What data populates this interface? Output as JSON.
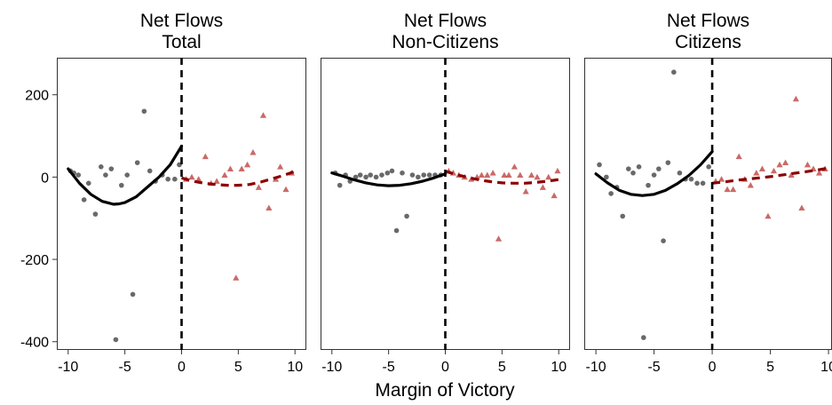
{
  "figure": {
    "xlabel": "Margin of Victory",
    "colors": {
      "left_points": "#595959",
      "right_points": "#c0504d",
      "left_curve": "#000000",
      "right_curve": "#8b0000",
      "cutoff_line": "#000000",
      "panel_border": "#333333"
    }
  },
  "chart_data": [
    {
      "type": "scatter",
      "title": "Net Flows\nTotal",
      "xlim": [
        -11,
        11
      ],
      "ylim": [
        -420,
        290
      ],
      "xticks": [
        -10,
        -5,
        0,
        5,
        10
      ],
      "yticks": [
        -400,
        -200,
        0,
        200
      ],
      "cutoff": 0,
      "left_points": [
        [
          -9.8,
          15
        ],
        [
          -9.5,
          10
        ],
        [
          -9.1,
          5
        ],
        [
          -8.6,
          -55
        ],
        [
          -8.2,
          -15
        ],
        [
          -7.6,
          -90
        ],
        [
          -7.1,
          25
        ],
        [
          -6.7,
          5
        ],
        [
          -6.2,
          20
        ],
        [
          -5.8,
          -395
        ],
        [
          -5.3,
          -20
        ],
        [
          -4.8,
          5
        ],
        [
          -4.3,
          -285
        ],
        [
          -3.9,
          35
        ],
        [
          -3.3,
          160
        ],
        [
          -2.8,
          15
        ],
        [
          -2.3,
          -10
        ],
        [
          -1.7,
          5
        ],
        [
          -1.2,
          -5
        ],
        [
          -0.6,
          -5
        ],
        [
          -0.2,
          30
        ]
      ],
      "right_points": [
        [
          0.4,
          -5
        ],
        [
          0.9,
          0
        ],
        [
          1.5,
          -5
        ],
        [
          2.1,
          50
        ],
        [
          2.6,
          -15
        ],
        [
          3.1,
          -10
        ],
        [
          3.8,
          5
        ],
        [
          4.3,
          20
        ],
        [
          4.8,
          -245
        ],
        [
          5.3,
          20
        ],
        [
          5.8,
          30
        ],
        [
          6.3,
          60
        ],
        [
          6.8,
          -25
        ],
        [
          7.2,
          150
        ],
        [
          7.7,
          -75
        ],
        [
          8.3,
          -5
        ],
        [
          8.7,
          25
        ],
        [
          9.2,
          -30
        ],
        [
          9.7,
          10
        ]
      ],
      "left_curve": [
        [
          -10,
          20
        ],
        [
          -9,
          -15
        ],
        [
          -8,
          -42
        ],
        [
          -7,
          -59
        ],
        [
          -6,
          -66
        ],
        [
          -5.5,
          -65
        ],
        [
          -5,
          -62
        ],
        [
          -4,
          -48
        ],
        [
          -3,
          -24
        ],
        [
          -2,
          0
        ],
        [
          -1,
          30
        ],
        [
          0,
          75
        ]
      ],
      "right_curve": [
        [
          0,
          -2
        ],
        [
          1,
          -10
        ],
        [
          2,
          -15
        ],
        [
          3,
          -18
        ],
        [
          4,
          -20
        ],
        [
          5,
          -20
        ],
        [
          6,
          -18
        ],
        [
          7,
          -12
        ],
        [
          8,
          -4
        ],
        [
          9,
          4
        ],
        [
          10,
          14
        ]
      ]
    },
    {
      "type": "scatter",
      "title": "Net Flows\nNon-Citizens",
      "xlim": [
        -11,
        11
      ],
      "ylim": [
        -420,
        290
      ],
      "xticks": [
        -10,
        -5,
        0,
        5,
        10
      ],
      "yticks": [
        -400,
        -200,
        0,
        200
      ],
      "cutoff": 0,
      "left_points": [
        [
          -9.7,
          10
        ],
        [
          -9.3,
          -20
        ],
        [
          -8.8,
          5
        ],
        [
          -8.4,
          -10
        ],
        [
          -7.9,
          0
        ],
        [
          -7.5,
          5
        ],
        [
          -7.0,
          0
        ],
        [
          -6.6,
          5
        ],
        [
          -6.1,
          0
        ],
        [
          -5.6,
          5
        ],
        [
          -5.1,
          10
        ],
        [
          -4.7,
          15
        ],
        [
          -4.3,
          -130
        ],
        [
          -3.8,
          10
        ],
        [
          -3.4,
          -95
        ],
        [
          -2.9,
          5
        ],
        [
          -2.4,
          0
        ],
        [
          -1.9,
          5
        ],
        [
          -1.4,
          5
        ],
        [
          -0.9,
          5
        ],
        [
          -0.4,
          5
        ]
      ],
      "right_points": [
        [
          0.3,
          15
        ],
        [
          0.7,
          10
        ],
        [
          1.2,
          5
        ],
        [
          1.7,
          0
        ],
        [
          2.3,
          -5
        ],
        [
          2.8,
          0
        ],
        [
          3.2,
          5
        ],
        [
          3.7,
          5
        ],
        [
          4.2,
          10
        ],
        [
          4.7,
          -150
        ],
        [
          5.2,
          5
        ],
        [
          5.6,
          5
        ],
        [
          6.1,
          25
        ],
        [
          6.6,
          5
        ],
        [
          7.1,
          -35
        ],
        [
          7.6,
          5
        ],
        [
          8.1,
          0
        ],
        [
          8.6,
          -25
        ],
        [
          9.1,
          0
        ],
        [
          9.6,
          -45
        ],
        [
          9.9,
          15
        ]
      ],
      "left_curve": [
        [
          -10,
          10
        ],
        [
          -9,
          2
        ],
        [
          -8,
          -7
        ],
        [
          -7,
          -14
        ],
        [
          -6,
          -19
        ],
        [
          -5,
          -21
        ],
        [
          -4,
          -20
        ],
        [
          -3,
          -16
        ],
        [
          -2,
          -10
        ],
        [
          -1,
          -2
        ],
        [
          0,
          8
        ]
      ],
      "right_curve": [
        [
          0,
          14
        ],
        [
          1,
          6
        ],
        [
          2,
          -1
        ],
        [
          3,
          -7
        ],
        [
          4,
          -11
        ],
        [
          5,
          -14
        ],
        [
          6,
          -15
        ],
        [
          7,
          -15
        ],
        [
          8,
          -13
        ],
        [
          9,
          -10
        ],
        [
          10,
          -6
        ]
      ]
    },
    {
      "type": "scatter",
      "title": "Net Flows\nCitizens",
      "xlim": [
        -11,
        10.3
      ],
      "ylim": [
        -420,
        290
      ],
      "xticks": [
        -10,
        -5,
        0,
        5,
        10
      ],
      "yticks": [
        -400,
        -200,
        0,
        200
      ],
      "cutoff": 0,
      "left_points": [
        [
          -9.7,
          30
        ],
        [
          -9.1,
          0
        ],
        [
          -8.7,
          -40
        ],
        [
          -8.2,
          -25
        ],
        [
          -7.7,
          -95
        ],
        [
          -7.2,
          20
        ],
        [
          -6.8,
          10
        ],
        [
          -6.3,
          25
        ],
        [
          -5.9,
          -390
        ],
        [
          -5.5,
          -20
        ],
        [
          -5.0,
          5
        ],
        [
          -4.6,
          20
        ],
        [
          -4.2,
          -155
        ],
        [
          -3.8,
          35
        ],
        [
          -3.3,
          255
        ],
        [
          -2.8,
          10
        ],
        [
          -2.3,
          -5
        ],
        [
          -1.8,
          -5
        ],
        [
          -1.3,
          -15
        ],
        [
          -0.8,
          -15
        ],
        [
          -0.3,
          25
        ]
      ],
      "right_points": [
        [
          0.3,
          -10
        ],
        [
          0.8,
          -5
        ],
        [
          1.3,
          -30
        ],
        [
          1.8,
          -30
        ],
        [
          2.3,
          50
        ],
        [
          2.8,
          -5
        ],
        [
          3.3,
          -20
        ],
        [
          3.8,
          10
        ],
        [
          4.3,
          20
        ],
        [
          4.8,
          -95
        ],
        [
          5.3,
          15
        ],
        [
          5.8,
          30
        ],
        [
          6.3,
          35
        ],
        [
          6.8,
          5
        ],
        [
          7.2,
          190
        ],
        [
          7.7,
          -75
        ],
        [
          8.2,
          30
        ],
        [
          8.7,
          20
        ],
        [
          9.2,
          10
        ],
        [
          9.7,
          20
        ]
      ],
      "left_curve": [
        [
          -10,
          8
        ],
        [
          -9,
          -14
        ],
        [
          -8,
          -32
        ],
        [
          -7,
          -42
        ],
        [
          -6,
          -45
        ],
        [
          -5,
          -42
        ],
        [
          -4,
          -32
        ],
        [
          -3,
          -16
        ],
        [
          -2,
          4
        ],
        [
          -1,
          30
        ],
        [
          0,
          62
        ]
      ],
      "right_curve": [
        [
          0,
          -15
        ],
        [
          1,
          -12
        ],
        [
          2,
          -8
        ],
        [
          3,
          -5
        ],
        [
          4,
          -2
        ],
        [
          5,
          1
        ],
        [
          6,
          5
        ],
        [
          7,
          9
        ],
        [
          8,
          13
        ],
        [
          9,
          17
        ],
        [
          10,
          22
        ]
      ]
    }
  ]
}
